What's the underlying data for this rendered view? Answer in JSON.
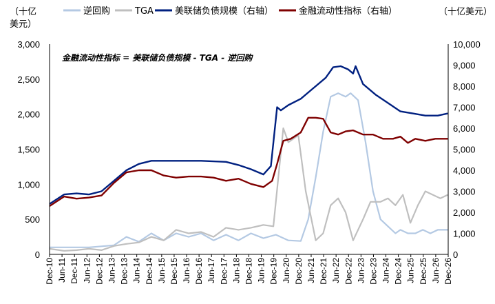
{
  "chart_data": {
    "type": "line",
    "annotation": "金融流动性指标 = 美联储负债规模 - TGA - 逆回购",
    "left_axis": {
      "unit": [
        "（十亿",
        "美元）"
      ],
      "ylim": [
        0,
        3000
      ],
      "ticks": [
        "0",
        "500",
        "1,000",
        "1,500",
        "2,000",
        "2,500",
        "3,000"
      ]
    },
    "right_axis": {
      "unit": "（十亿美元）",
      "ylim": [
        0,
        10000
      ],
      "ticks": [
        "0",
        "1,000",
        "2,000",
        "3,000",
        "4,000",
        "5,000",
        "6,000",
        "7,000",
        "8,000",
        "9,000",
        "10,000"
      ]
    },
    "x_ticks": [
      "Dec-10",
      "Jun-11",
      "Dec-11",
      "Jun-12",
      "Dec-12",
      "Jun-13",
      "Dec-13",
      "Jun-14",
      "Dec-14",
      "Jun-15",
      "Dec-15",
      "Jun-16",
      "Dec-16",
      "Jun-17",
      "Dec-17",
      "Jun-18",
      "Dec-18",
      "Jun-19",
      "Dec-19",
      "Jun-20",
      "Dec-20",
      "Jun-21",
      "Dec-21",
      "Jun-22",
      "Dec-22",
      "Jun-23",
      "Dec-23",
      "Jun-24",
      "Dec-24",
      "Jun-25",
      "Dec-25",
      "Jun-26",
      "Dec-26"
    ],
    "x_range": [
      2010.917,
      2026.917
    ],
    "legend": [
      "逆回购",
      "TGA",
      "美联储负债规模（右轴）",
      "金融流动性指标（右轴）"
    ],
    "colors": {
      "rrp": "#b4c9e3",
      "tga": "#bfbfbf",
      "fed": "#002080",
      "liq": "#7f0000"
    },
    "series": [
      {
        "name": "逆回购",
        "axis": "left",
        "x": [
          2010.92,
          2011.5,
          2012.5,
          2013.5,
          2014.0,
          2014.5,
          2015.0,
          2015.5,
          2016.0,
          2016.5,
          2017.0,
          2017.5,
          2018.0,
          2018.5,
          2019.0,
          2019.5,
          2020.0,
          2020.5,
          2021.0,
          2021.3,
          2021.6,
          2021.9,
          2022.2,
          2022.5,
          2022.8,
          2023.0,
          2023.3,
          2023.6,
          2023.9,
          2024.2,
          2024.5,
          2024.8,
          2025.0,
          2025.3,
          2025.6,
          2025.9,
          2026.2,
          2026.5,
          2026.9
        ],
        "values": [
          100,
          100,
          100,
          130,
          250,
          180,
          300,
          200,
          300,
          250,
          300,
          200,
          280,
          200,
          300,
          230,
          280,
          200,
          190,
          500,
          1100,
          1750,
          2250,
          2300,
          2250,
          2300,
          2200,
          1600,
          900,
          500,
          400,
          300,
          350,
          300,
          300,
          350,
          300,
          350,
          350
        ]
      },
      {
        "name": "TGA",
        "axis": "left",
        "x": [
          2010.92,
          2011.5,
          2012.0,
          2012.5,
          2013.0,
          2013.5,
          2014.0,
          2014.5,
          2015.0,
          2015.5,
          2016.0,
          2016.5,
          2017.0,
          2017.5,
          2018.0,
          2018.5,
          2019.0,
          2019.5,
          2019.9,
          2020.3,
          2020.5,
          2020.9,
          2021.2,
          2021.6,
          2021.9,
          2022.2,
          2022.5,
          2022.8,
          2023.1,
          2023.5,
          2023.8,
          2024.2,
          2024.5,
          2024.8,
          2025.1,
          2025.4,
          2025.7,
          2026.0,
          2026.3,
          2026.6,
          2026.9
        ],
        "values": [
          80,
          50,
          60,
          80,
          60,
          120,
          150,
          170,
          250,
          200,
          350,
          300,
          320,
          250,
          380,
          350,
          380,
          420,
          400,
          1800,
          1600,
          1700,
          900,
          200,
          300,
          700,
          800,
          600,
          200,
          500,
          750,
          750,
          800,
          700,
          850,
          450,
          700,
          900,
          850,
          800,
          850
        ]
      },
      {
        "name": "美联储负债规模（右轴）",
        "axis": "right",
        "x": [
          2010.92,
          2011.5,
          2012.0,
          2012.5,
          2013.0,
          2013.5,
          2014.0,
          2014.5,
          2015.0,
          2016.0,
          2017.0,
          2018.0,
          2018.5,
          2019.0,
          2019.5,
          2019.8,
          2020.05,
          2020.2,
          2020.5,
          2021.0,
          2021.5,
          2022.0,
          2022.3,
          2022.6,
          2022.9,
          2023.1,
          2023.2,
          2023.5,
          2024.0,
          2024.5,
          2025.0,
          2025.5,
          2026.0,
          2026.5,
          2026.9
        ],
        "values": [
          2400,
          2850,
          2900,
          2850,
          3000,
          3500,
          4000,
          4300,
          4450,
          4450,
          4450,
          4400,
          4250,
          4050,
          3800,
          4200,
          7000,
          6850,
          7100,
          7400,
          7900,
          8400,
          8900,
          8950,
          8800,
          8600,
          8950,
          8100,
          7600,
          7200,
          6800,
          6700,
          6600,
          6600,
          6700
        ]
      },
      {
        "name": "金融流动性指标（右轴）",
        "axis": "right",
        "x": [
          2010.92,
          2011.5,
          2012.0,
          2012.5,
          2013.0,
          2013.5,
          2014.0,
          2014.5,
          2015.0,
          2015.5,
          2016.0,
          2016.5,
          2017.0,
          2017.5,
          2018.0,
          2018.5,
          2019.0,
          2019.5,
          2019.85,
          2020.05,
          2020.3,
          2020.6,
          2021.0,
          2021.3,
          2021.6,
          2021.9,
          2022.2,
          2022.5,
          2022.8,
          2023.1,
          2023.5,
          2023.9,
          2024.3,
          2024.7,
          2025.0,
          2025.3,
          2025.6,
          2026.0,
          2026.4,
          2026.9
        ],
        "values": [
          2300,
          2750,
          2650,
          2700,
          2800,
          3400,
          3900,
          4000,
          4000,
          3750,
          3650,
          3700,
          3700,
          3650,
          3500,
          3600,
          3350,
          3200,
          3500,
          4300,
          5400,
          5500,
          5800,
          6500,
          6500,
          6450,
          5800,
          5700,
          5850,
          5900,
          5700,
          5700,
          5500,
          5500,
          5600,
          5300,
          5500,
          5400,
          5500,
          5500
        ]
      }
    ]
  }
}
